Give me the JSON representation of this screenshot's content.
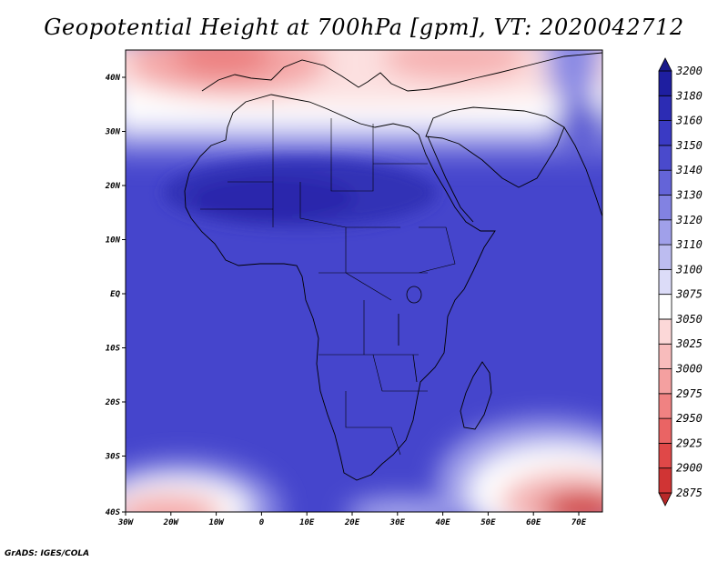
{
  "title": "Geopotential Height at 700hPa [gpm], VT: 2020042712",
  "credit": "GrADS: IGES/COLA",
  "map": {
    "lat_labels": [
      "40N",
      "30N",
      "20N",
      "10N",
      "EQ",
      "10S",
      "20S",
      "30S",
      "40S"
    ],
    "lon_labels": [
      "30W",
      "20W",
      "10W",
      "0",
      "10E",
      "20E",
      "30E",
      "40E",
      "50E",
      "60E",
      "70E"
    ]
  },
  "colorbar": {
    "levels": [
      "2875",
      "2900",
      "2925",
      "2950",
      "2975",
      "3000",
      "3025",
      "3050",
      "3075",
      "3100",
      "3110",
      "3120",
      "3130",
      "3140",
      "3150",
      "3160",
      "3180",
      "3200"
    ],
    "colors": [
      "#b82828",
      "#d03434",
      "#e04848",
      "#ea6464",
      "#f08282",
      "#f4a0a0",
      "#f8bcbc",
      "#fcd8d8",
      "#ffffff",
      "#dcdcf8",
      "#bcbcf0",
      "#a0a0ea",
      "#8282e2",
      "#6464d8",
      "#4a4acc",
      "#3a3ac4",
      "#2c2cb4",
      "#1e1ea0",
      "#18188a"
    ]
  },
  "colors": {
    "ocean_base": "#4545cc",
    "land_base": "#3c3cc4",
    "sahara_core": "#2e2ab4",
    "coast": "#000000"
  }
}
